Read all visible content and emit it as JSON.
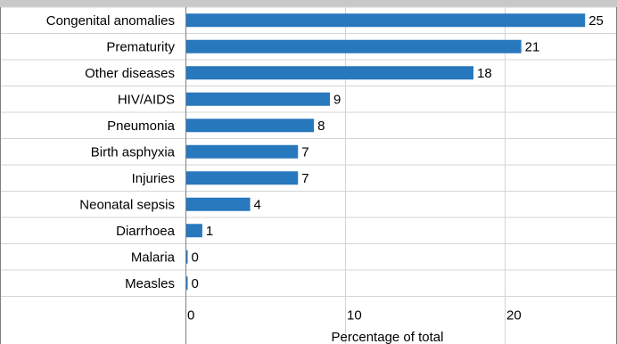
{
  "chart_data": {
    "type": "bar",
    "orientation": "horizontal",
    "categories": [
      "Congenital anomalies",
      "Prematurity",
      "Other diseases",
      "HIV/AIDS",
      "Pneumonia",
      "Birth asphyxia",
      "Injuries",
      "Neonatal sepsis",
      "Diarrhoea",
      "Malaria",
      "Measles"
    ],
    "values": [
      25,
      21,
      18,
      9,
      8,
      7,
      7,
      4,
      1,
      0,
      0
    ],
    "value_labels": [
      "25",
      "21",
      "18",
      "9",
      "8",
      "7",
      "7",
      "4",
      "1",
      "0",
      "0"
    ],
    "xlabel": "Percentage of total",
    "ylabel": "",
    "xlim": [
      0,
      27
    ],
    "xticks": [
      0,
      10,
      20
    ],
    "xtick_labels": [
      "0",
      "10",
      "20"
    ],
    "grid": true,
    "colors": {
      "bar": "#2878bd",
      "header_band": "#c8c8c8",
      "grid": "#d4d4d4",
      "border": "#808080",
      "text": "#000000"
    }
  }
}
